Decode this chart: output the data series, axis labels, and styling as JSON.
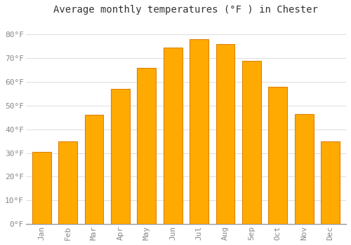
{
  "title": "Average monthly temperatures (°F ) in Chester",
  "months": [
    "Jan",
    "Feb",
    "Mar",
    "Apr",
    "May",
    "Jun",
    "Jul",
    "Aug",
    "Sep",
    "Oct",
    "Nov",
    "Dec"
  ],
  "values": [
    30.5,
    35.0,
    46.0,
    57.0,
    66.0,
    74.5,
    78.0,
    76.0,
    69.0,
    58.0,
    46.5,
    35.0
  ],
  "bar_color": "#FFAA00",
  "bar_edge_color": "#E08000",
  "background_color": "#FFFFFF",
  "plot_bg_color": "#FFFFFF",
  "grid_color": "#DDDDDD",
  "ytick_labels": [
    "0°F",
    "10°F",
    "20°F",
    "30°F",
    "40°F",
    "50°F",
    "60°F",
    "70°F",
    "80°F"
  ],
  "ytick_values": [
    0,
    10,
    20,
    30,
    40,
    50,
    60,
    70,
    80
  ],
  "ylim": [
    0,
    86
  ],
  "title_fontsize": 10,
  "tick_fontsize": 8,
  "tick_color": "#888888",
  "title_color": "#333333",
  "bar_width": 0.72
}
